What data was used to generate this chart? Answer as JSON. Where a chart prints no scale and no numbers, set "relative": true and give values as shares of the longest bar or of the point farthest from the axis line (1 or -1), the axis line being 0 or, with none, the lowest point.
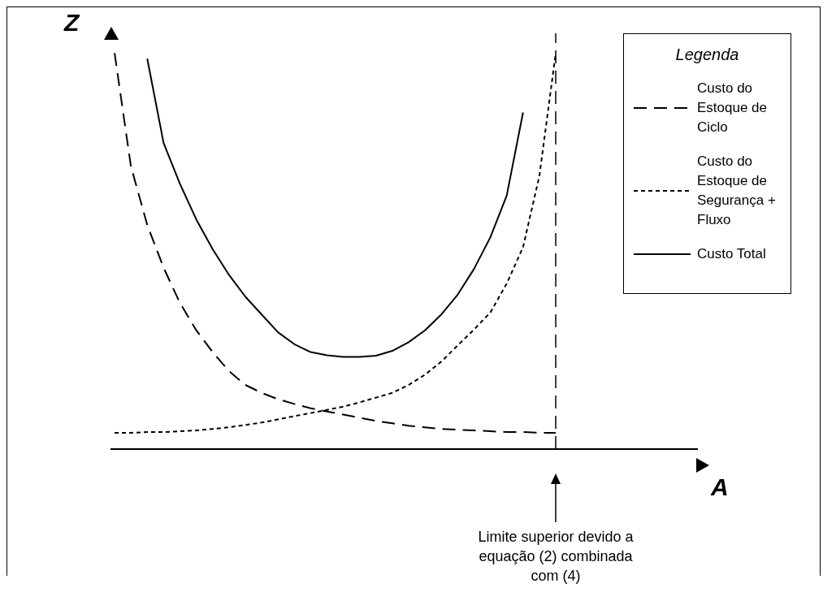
{
  "chart_data": {
    "type": "line",
    "relative": true,
    "annotations": [
      "A"
    ],
    "ylabel": "Z",
    "legend_title": "Legenda",
    "legend": "top right",
    "marker": "none",
    "categories": [
      null,
      null,
      null,
      null,
      null,
      null,
      null,
      null,
      null,
      null,
      null,
      null,
      null,
      null,
      null,
      null,
      null,
      null,
      null,
      null,
      null,
      null,
      null,
      null,
      null,
      null,
      null,
      null
    ],
    "series": [
      {
        "name": "Custo do Estoque de Ciclo",
        "color": "#000000",
        "line_style": "dashed",
        "values": [
          1.0,
          0.714,
          0.566,
          0.458,
          0.369,
          0.3,
          0.245,
          0.197,
          0.162,
          0.142,
          0.126,
          0.114,
          0.103,
          0.095,
          0.087,
          0.079,
          0.071,
          0.065,
          0.059,
          0.055,
          0.051,
          0.049,
          0.047,
          0.045,
          0.043,
          0.043,
          0.041,
          0.041
        ]
      },
      {
        "name": "Custo do Estoque de Segurança + Fluxo",
        "color": "#000000",
        "line_style": "dotted",
        "values": [
          0.041,
          0.041,
          0.043,
          0.043,
          0.045,
          0.047,
          0.051,
          0.055,
          0.061,
          0.067,
          0.075,
          0.083,
          0.091,
          0.099,
          0.107,
          0.118,
          0.13,
          0.142,
          0.162,
          0.188,
          0.221,
          0.262,
          0.302,
          0.345,
          0.418,
          0.51,
          0.69,
          1.0
        ]
      },
      {
        "name": "Custo Total",
        "color": "#000000",
        "line_style": "solid",
        "values": [
          null,
          null,
          0.986,
          0.773,
          0.67,
          0.58,
          0.505,
          0.44,
          0.385,
          0.34,
          0.295,
          0.265,
          0.245,
          0.237,
          0.233,
          0.233,
          0.236,
          0.248,
          0.27,
          0.3,
          0.34,
          0.39,
          0.455,
          0.535,
          0.64,
          0.85,
          null,
          null
        ]
      }
    ],
    "ref_lines": [
      {
        "axis": "x",
        "label": "Limite superior devido a equação (2) combinada com (4)",
        "line_style": "dashed",
        "color": "#000000"
      }
    ]
  }
}
